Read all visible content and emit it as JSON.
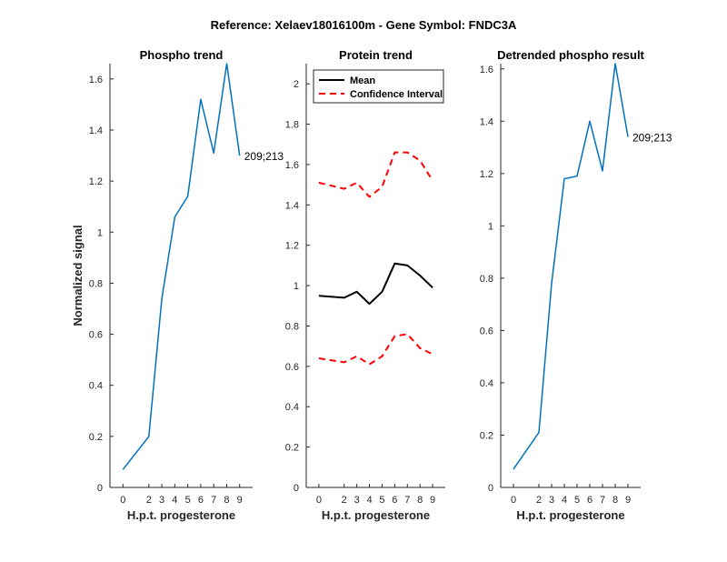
{
  "figure": {
    "title": "Reference:  Xelaev18016100m - Gene Symbol:  FNDC3A"
  },
  "chart_data": [
    {
      "type": "line",
      "title": "Phospho trend",
      "xlabel": "H.p.t. progesterone",
      "ylabel": "Normalized signal",
      "x": [
        0,
        2,
        3,
        4,
        5,
        6,
        7,
        8,
        9
      ],
      "xlim": [
        -1,
        10
      ],
      "ylim": [
        0,
        1.66
      ],
      "yticks": [
        0,
        0.2,
        0.4,
        0.6,
        0.8,
        1,
        1.2,
        1.4,
        1.6
      ],
      "ytick_labels": [
        "0",
        "0.2",
        "0.4",
        "0.6",
        "0.8",
        "1",
        "1.2",
        "1.4",
        "1.6"
      ],
      "series": [
        {
          "values": [
            0.07,
            0.2,
            0.74,
            1.06,
            1.14,
            1.52,
            1.31,
            1.66,
            1.3
          ],
          "color": "#0072BD",
          "style": "solid"
        }
      ],
      "annotation": "209;213"
    },
    {
      "type": "line",
      "title": "Protein trend",
      "xlabel": "H.p.t. progesterone",
      "ylabel": "",
      "x": [
        0,
        2,
        3,
        4,
        5,
        6,
        7,
        8,
        9
      ],
      "xlim": [
        -1,
        10
      ],
      "ylim": [
        0,
        2.1
      ],
      "yticks": [
        0,
        0.2,
        0.4,
        0.6,
        0.8,
        1,
        1.2,
        1.4,
        1.6,
        1.8,
        2
      ],
      "ytick_labels": [
        "0",
        "0.2",
        "0.4",
        "0.6",
        "0.8",
        "1",
        "1.2",
        "1.4",
        "1.6",
        "1.8",
        "2"
      ],
      "series": [
        {
          "name": "Mean",
          "values": [
            0.95,
            0.94,
            0.97,
            0.91,
            0.97,
            1.11,
            1.1,
            1.05,
            0.99
          ],
          "color": "#000000",
          "style": "solid"
        },
        {
          "name": "Confidence Interval",
          "values": [
            1.51,
            1.48,
            1.51,
            1.44,
            1.49,
            1.66,
            1.66,
            1.62,
            1.52
          ],
          "color": "#FF0000",
          "style": "dashed"
        },
        {
          "values": [
            0.64,
            0.62,
            0.65,
            0.61,
            0.65,
            0.75,
            0.76,
            0.69,
            0.66
          ],
          "color": "#FF0000",
          "style": "dashed"
        }
      ],
      "legend": {
        "position": "top-left",
        "entries": [
          "Mean",
          "Confidence Interval"
        ]
      }
    },
    {
      "type": "line",
      "title": "Detrended phospho result",
      "xlabel": "H.p.t. progesterone",
      "ylabel": "",
      "x": [
        0,
        2,
        3,
        4,
        5,
        6,
        7,
        8,
        9
      ],
      "xlim": [
        -1,
        10
      ],
      "ylim": [
        0,
        1.62
      ],
      "yticks": [
        0,
        0.2,
        0.4,
        0.6,
        0.8,
        1,
        1.2,
        1.4,
        1.6
      ],
      "ytick_labels": [
        "0",
        "0.2",
        "0.4",
        "0.6",
        "0.8",
        "1",
        "1.2",
        "1.4",
        "1.6"
      ],
      "series": [
        {
          "values": [
            0.07,
            0.21,
            0.78,
            1.18,
            1.19,
            1.4,
            1.21,
            1.62,
            1.34
          ],
          "color": "#0072BD",
          "style": "solid"
        }
      ],
      "annotation": "209;213"
    }
  ]
}
